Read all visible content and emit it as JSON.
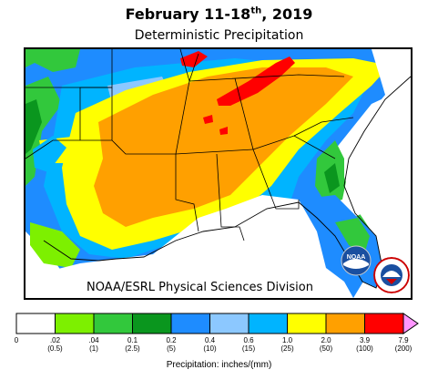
{
  "title": {
    "month_day": "February 11-18",
    "superscript": "th",
    "year": ", 2019"
  },
  "subtitle": "Deterministic Precipitation",
  "credit": "NOAA/ESRL Physical Sciences Division",
  "logos": [
    {
      "name": "noaa-logo",
      "text": "NOAA"
    },
    {
      "name": "nws-logo",
      "text": "NATIONAL WEATHER SERVICE"
    }
  ],
  "legend": {
    "caption": "Precipitation: inches/(mm)",
    "colors": [
      "#ffffff",
      "#7df000",
      "#32c83c",
      "#0a961e",
      "#1e8cff",
      "#8cc8ff",
      "#00b4ff",
      "#ffff00",
      "#ffa000",
      "#ff0000",
      "#ff96ff"
    ],
    "ticks": [
      {
        "in": "0",
        "mm": ""
      },
      {
        "in": ".02",
        "mm": "(0.5)"
      },
      {
        "in": ".04",
        "mm": "(1)"
      },
      {
        "in": "0.1",
        "mm": "(2.5)"
      },
      {
        "in": "0.2",
        "mm": "(5)"
      },
      {
        "in": "0.4",
        "mm": "(10)"
      },
      {
        "in": "0.6",
        "mm": "(15)"
      },
      {
        "in": "1.0",
        "mm": "(25)"
      },
      {
        "in": "2.0",
        "mm": "(50)"
      },
      {
        "in": "3.9",
        "mm": "(100)"
      },
      {
        "in": "7.9",
        "mm": "(200)"
      }
    ]
  }
}
